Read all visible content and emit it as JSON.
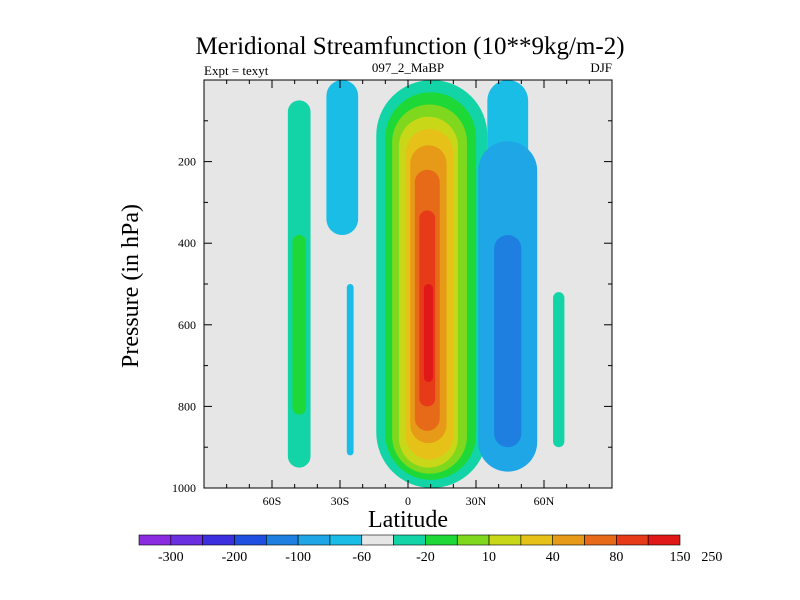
{
  "chart_data": {
    "type": "heatmap",
    "title": "Meridional Streamfunction (10**9kg/m-2)",
    "left_label": "Expt = texyt",
    "center_label": "097_2_MaBP",
    "right_label": "DJF",
    "xlabel": "Latitude",
    "ylabel": "Pressure (in hPa)",
    "xlim": [
      -90,
      90
    ],
    "ylim": [
      0,
      1000
    ],
    "y_reversed": true,
    "x_ticks": [
      {
        "value": -60,
        "label": "60S"
      },
      {
        "value": -30,
        "label": "30S"
      },
      {
        "value": 0,
        "label": "0"
      },
      {
        "value": 30,
        "label": "30N"
      },
      {
        "value": 60,
        "label": "60N"
      }
    ],
    "y_ticks": [
      {
        "value": 200,
        "label": "200"
      },
      {
        "value": 400,
        "label": "400"
      },
      {
        "value": 600,
        "label": "600"
      },
      {
        "value": 800,
        "label": "800"
      },
      {
        "value": 1000,
        "label": "1000"
      }
    ],
    "background_color": "#e6e6e6",
    "levels": [
      -300,
      -200,
      -100,
      -60,
      -20,
      10,
      40,
      80,
      150,
      250
    ],
    "colorbar_labels": [
      "-300",
      "-200",
      "-100",
      "-60",
      "-20",
      "10",
      "40",
      "80",
      "150",
      "250"
    ],
    "colorbar_colors": [
      "#8a2be2",
      "#6a2fe0",
      "#3b2fe0",
      "#1f4fe0",
      "#1e7fe0",
      "#1ea6e6",
      "#19bde6",
      "#e6e6e6",
      "#12d4a6",
      "#1ed838",
      "#7fd81e",
      "#c8d818",
      "#e6c218",
      "#e69a18",
      "#e66a18",
      "#e63a18",
      "#e01818"
    ],
    "features": [
      {
        "name": "cell-sh-upper",
        "lat": [
          -36,
          -22
        ],
        "p": [
          0,
          380
        ],
        "color": "#19bde6"
      },
      {
        "name": "cell-sh-strip",
        "lat": [
          -27,
          -24
        ],
        "p": [
          500,
          920
        ],
        "color": "#19bde6"
      },
      {
        "name": "cell-sh-green",
        "lat": [
          -53,
          -43
        ],
        "p": [
          50,
          950
        ],
        "color": "#12d4a6"
      },
      {
        "name": "cell-sh-green-core",
        "lat": [
          -51,
          -45
        ],
        "p": [
          380,
          820
        ],
        "color": "#1ed838"
      },
      {
        "name": "cell-tropical",
        "lat": [
          -14,
          35
        ],
        "p": [
          0,
          1000
        ],
        "color": "#12d4a6"
      },
      {
        "name": "cell-tropical-l1",
        "lat": [
          -10,
          30
        ],
        "p": [
          30,
          980
        ],
        "color": "#1ed838"
      },
      {
        "name": "cell-tropical-l2",
        "lat": [
          -7,
          26
        ],
        "p": [
          60,
          965
        ],
        "color": "#7fd81e"
      },
      {
        "name": "cell-tropical-l3",
        "lat": [
          -4,
          22
        ],
        "p": [
          90,
          950
        ],
        "color": "#c8d818"
      },
      {
        "name": "cell-tropical-l4",
        "lat": [
          -1,
          20
        ],
        "p": [
          120,
          930
        ],
        "color": "#e6c218"
      },
      {
        "name": "cell-tropical-l5",
        "lat": [
          1,
          17
        ],
        "p": [
          160,
          890
        ],
        "color": "#e69a18"
      },
      {
        "name": "cell-tropical-l6",
        "lat": [
          3,
          14
        ],
        "p": [
          220,
          860
        ],
        "color": "#e66a18"
      },
      {
        "name": "cell-tropical-l7",
        "lat": [
          5,
          12
        ],
        "p": [
          320,
          800
        ],
        "color": "#e63a18"
      },
      {
        "name": "cell-tropical-core",
        "lat": [
          7,
          11
        ],
        "p": [
          500,
          740
        ],
        "color": "#e01818"
      },
      {
        "name": "cell-nh-upper",
        "lat": [
          35,
          53
        ],
        "p": [
          0,
          220
        ],
        "color": "#19bde6"
      },
      {
        "name": "cell-nh-outer",
        "lat": [
          31,
          57
        ],
        "p": [
          150,
          960
        ],
        "color": "#1ea6e6"
      },
      {
        "name": "cell-nh-core",
        "lat": [
          38,
          50
        ],
        "p": [
          380,
          900
        ],
        "color": "#1e7fe0"
      },
      {
        "name": "cell-nh-green",
        "lat": [
          64,
          69
        ],
        "p": [
          520,
          900
        ],
        "color": "#12d4a6"
      }
    ]
  }
}
